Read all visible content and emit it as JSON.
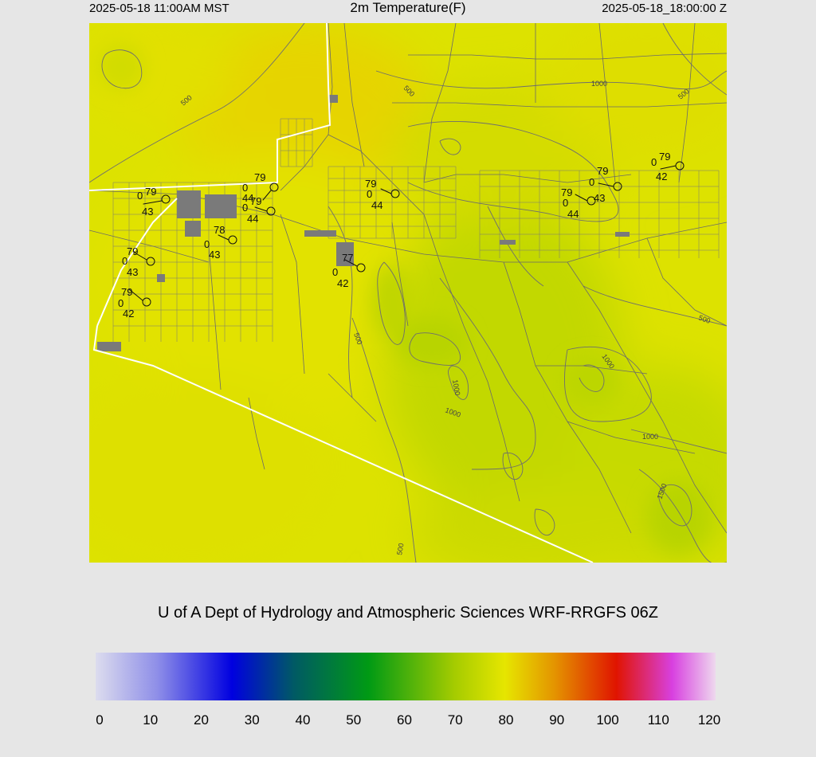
{
  "header": {
    "local_time": "2025-05-18 11:00AM MST",
    "title": "2m Temperature(F)",
    "valid_time": "2025-05-18_18:00:00 Z"
  },
  "credit": "U of A Dept of Hydrology and Atmospheric Sciences WRF-RRGFS 06Z",
  "map": {
    "contour_labels": [
      "500",
      "500",
      "1000",
      "500",
      "500",
      "500",
      "1000",
      "1000",
      "1000",
      "1000",
      "1500",
      "500"
    ],
    "stations": [
      {
        "temp": "79",
        "dew": "43",
        "pressure": "0"
      },
      {
        "temp": "79",
        "dew": "44",
        "pressure": "0"
      },
      {
        "temp": "79",
        "dew": "44",
        "pressure": "0"
      },
      {
        "temp": "78",
        "dew": "43",
        "pressure": "0"
      },
      {
        "temp": "79",
        "dew": "43",
        "pressure": "0"
      },
      {
        "temp": "79",
        "dew": "42",
        "pressure": "0"
      },
      {
        "temp": "77",
        "dew": "42",
        "pressure": "0"
      },
      {
        "temp": "79",
        "dew": "44",
        "pressure": "0"
      },
      {
        "temp": "79",
        "dew": "44",
        "pressure": "0"
      },
      {
        "temp": "79",
        "dew": "43",
        "pressure": "0"
      },
      {
        "temp": "79",
        "dew": "42",
        "pressure": "0"
      }
    ]
  },
  "colorbar": {
    "ticks": [
      "0",
      "10",
      "20",
      "30",
      "40",
      "50",
      "60",
      "70",
      "80",
      "90",
      "100",
      "110",
      "120"
    ],
    "range": [
      0,
      120
    ],
    "colors": [
      "#dcdcee",
      "#8e8ee8",
      "#0000e0",
      "#005a64",
      "#009a14",
      "#a6cc00",
      "#e6e600",
      "#e49400",
      "#e01400",
      "#d840e0",
      "#eed8ee"
    ]
  }
}
